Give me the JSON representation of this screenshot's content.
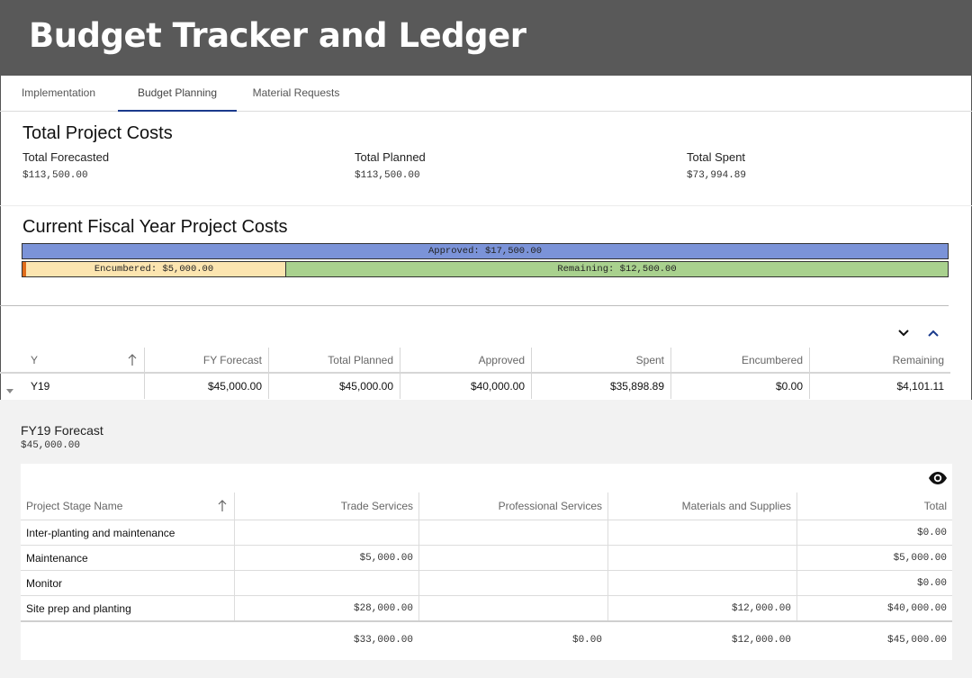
{
  "app": {
    "title": "Budget Tracker and Ledger"
  },
  "tabs": [
    {
      "label": "Implementation"
    },
    {
      "label": "Budget Planning"
    },
    {
      "label": "Material Requests"
    }
  ],
  "totals": {
    "heading": "Total Project Costs",
    "forecasted_label": "Total Forecasted",
    "forecasted_value": "$113,500.00",
    "planned_label": "Total Planned",
    "planned_value": "$113,500.00",
    "spent_label": "Total Spent",
    "spent_value": "$73,994.89"
  },
  "fiscal": {
    "heading": "Current Fiscal Year Project Costs",
    "approved_text": "Approved: $17,500.00",
    "encumbered_text": "Encumbered: $5,000.00",
    "remaining_text": "Remaining: $12,500.00",
    "approved_amount": 17500,
    "encumbered_amount": 5000,
    "remaining_amount": 12500,
    "colors": {
      "approved": "#7b93d8",
      "encumbered": "#fce5b0",
      "remaining": "#a9d18e",
      "spent_marker": "#e06c1a"
    }
  },
  "grid": {
    "headers": [
      "Y",
      "FY Forecast",
      "Total Planned",
      "Approved",
      "Spent",
      "Encumbered",
      "Remaining"
    ],
    "sort_icon": "arrow-up-icon",
    "row": [
      "Y19",
      "$45,000.00",
      "$45,000.00",
      "$40,000.00",
      "$35,898.89",
      "$0.00",
      "$4,101.11"
    ]
  },
  "detail": {
    "title": "FY19 Forecast",
    "value": "$45,000.00",
    "headers": [
      "Project Stage Name",
      "Trade Services",
      "Professional Services",
      "Materials and Supplies",
      "Total"
    ],
    "rows": [
      [
        "Inter-planting and maintenance",
        "",
        "",
        "",
        "$0.00"
      ],
      [
        "Maintenance",
        "$5,000.00",
        "",
        "",
        "$5,000.00"
      ],
      [
        "Monitor",
        "",
        "",
        "",
        "$0.00"
      ],
      [
        "Site prep and planting",
        "$28,000.00",
        "",
        "$12,000.00",
        "$40,000.00"
      ]
    ],
    "footer": [
      "",
      "$33,000.00",
      "$0.00",
      "$12,000.00",
      "$45,000.00"
    ]
  },
  "icons": {
    "collapse": "chevron-down-icon",
    "expand": "chevron-up-icon",
    "visibility": "eye-icon",
    "row_toggle": "triangle-down-icon"
  }
}
